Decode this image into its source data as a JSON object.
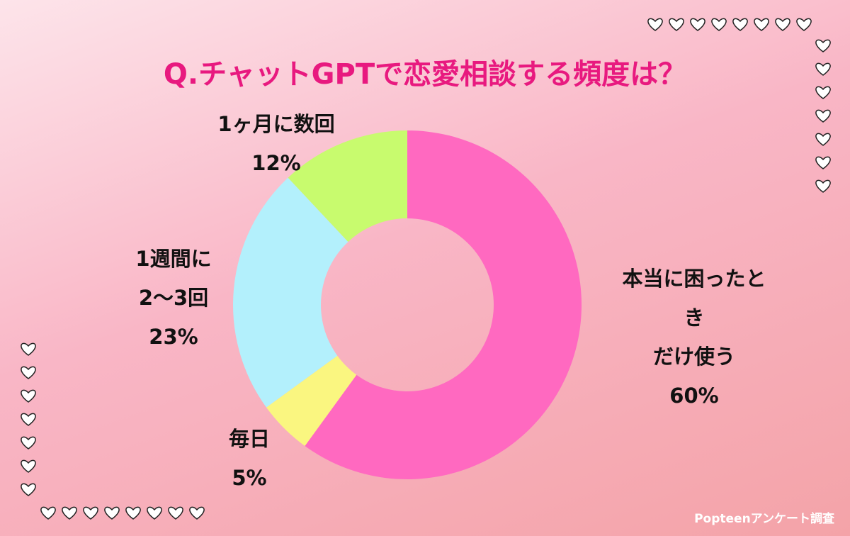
{
  "chart_data": {
    "type": "donut",
    "title": "Q.チャットGPTで恋愛相談する頻度は？",
    "categories": [
      "本当に困ったとき\nだけ使う",
      "毎日",
      "1週間に\n2〜3回",
      "1ヶ月に数回"
    ],
    "values": [
      60,
      5,
      23,
      12
    ],
    "value_labels": [
      "60%",
      "5%",
      "23%",
      "12%"
    ],
    "colors": [
      "#ff69c0",
      "#faf680",
      "#b3f0fc",
      "#c8fb6e"
    ],
    "source": "Popteenアンケート調査"
  }
}
